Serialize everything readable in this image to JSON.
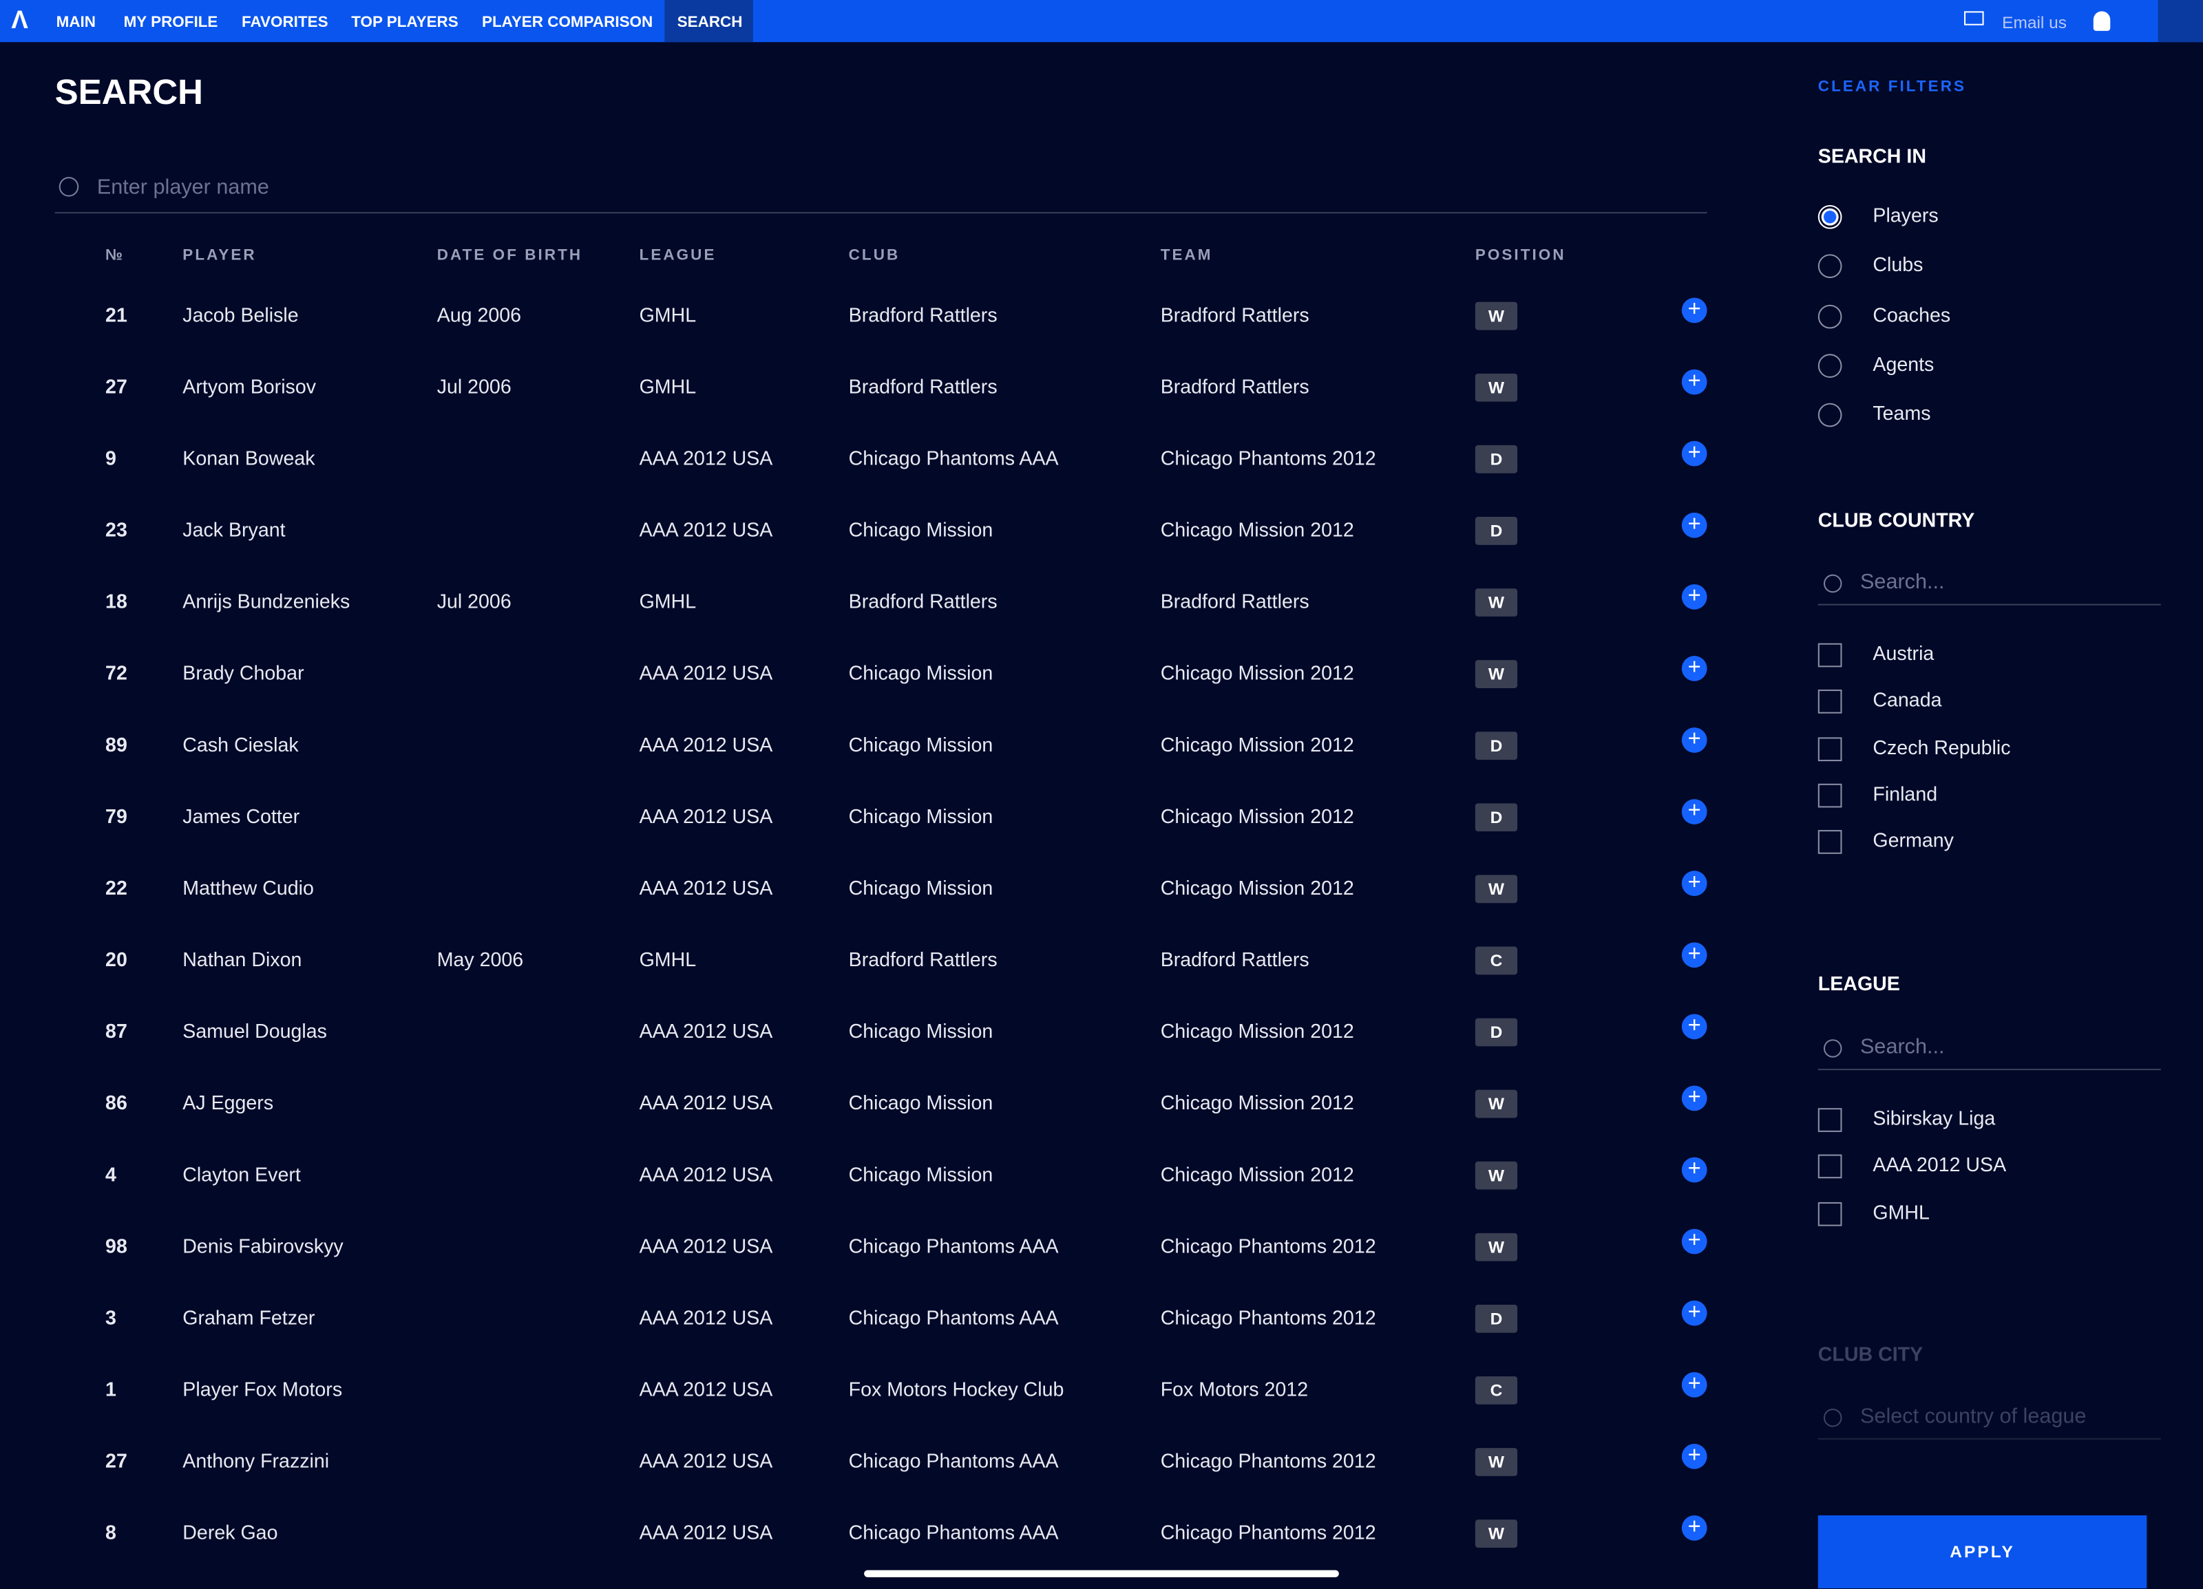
{
  "nav": {
    "items": [
      "MAIN",
      "MY PROFILE",
      "FAVORITES",
      "TOP PLAYERS",
      "PLAYER COMPARISON",
      "SEARCH"
    ],
    "email": "Email us"
  },
  "page": {
    "title": "SEARCH",
    "search_placeholder": "Enter player name"
  },
  "table": {
    "headers": [
      "№",
      "PLAYER",
      "DATE OF BIRTH",
      "LEAGUE",
      "CLUB",
      "TEAM",
      "POSITION"
    ],
    "rows": [
      [
        "21",
        "Jacob Belisle",
        "Aug 2006",
        "GMHL",
        "Bradford Rattlers",
        "Bradford Rattlers",
        "W"
      ],
      [
        "27",
        "Artyom Borisov",
        "Jul 2006",
        "GMHL",
        "Bradford Rattlers",
        "Bradford Rattlers",
        "W"
      ],
      [
        "9",
        "Konan Boweak",
        null,
        "AAA 2012 USA",
        "Chicago Phantoms AAA",
        "Chicago Phantoms 2012",
        "D"
      ],
      [
        "23",
        "Jack Bryant",
        null,
        "AAA 2012 USA",
        "Chicago Mission",
        "Chicago Mission 2012",
        "D"
      ],
      [
        "18",
        "Anrijs Bundzenieks",
        "Jul 2006",
        "GMHL",
        "Bradford Rattlers",
        "Bradford Rattlers",
        "W"
      ],
      [
        "72",
        "Brady Chobar",
        null,
        "AAA 2012 USA",
        "Chicago Mission",
        "Chicago Mission 2012",
        "W"
      ],
      [
        "89",
        "Cash Cieslak",
        null,
        "AAA 2012 USA",
        "Chicago Mission",
        "Chicago Mission 2012",
        "D"
      ],
      [
        "79",
        "James Cotter",
        null,
        "AAA 2012 USA",
        "Chicago Mission",
        "Chicago Mission 2012",
        "D"
      ],
      [
        "22",
        "Matthew Cudio",
        null,
        "AAA 2012 USA",
        "Chicago Mission",
        "Chicago Mission 2012",
        "W"
      ],
      [
        "20",
        "Nathan Dixon",
        "May 2006",
        "GMHL",
        "Bradford Rattlers",
        "Bradford Rattlers",
        "C"
      ],
      [
        "87",
        "Samuel Douglas",
        null,
        "AAA 2012 USA",
        "Chicago Mission",
        "Chicago Mission 2012",
        "D"
      ],
      [
        "86",
        "AJ Eggers",
        null,
        "AAA 2012 USA",
        "Chicago Mission",
        "Chicago Mission 2012",
        "W"
      ],
      [
        "4",
        "Clayton Evert",
        null,
        "AAA 2012 USA",
        "Chicago Mission",
        "Chicago Mission 2012",
        "W"
      ],
      [
        "98",
        "Denis Fabirovskyy",
        null,
        "AAA 2012 USA",
        "Chicago Phantoms AAA",
        "Chicago Phantoms 2012",
        "W"
      ],
      [
        "3",
        "Graham Fetzer",
        null,
        "AAA 2012 USA",
        "Chicago Phantoms AAA",
        "Chicago Phantoms 2012",
        "D"
      ],
      [
        "1",
        "Player Fox Motors",
        null,
        "AAA 2012 USA",
        "Fox Motors Hockey Club",
        "Fox Motors 2012",
        "C"
      ],
      [
        "27",
        "Anthony Frazzini",
        null,
        "AAA 2012 USA",
        "Chicago Phantoms AAA",
        "Chicago Phantoms 2012",
        "W"
      ],
      [
        "8",
        "Derek Gao",
        null,
        "AAA 2012 USA",
        "Chicago Phantoms AAA",
        "Chicago Phantoms 2012",
        "W"
      ]
    ]
  },
  "filters": {
    "clear": "CLEAR FILTERS",
    "search_in": {
      "title": "SEARCH IN",
      "options": [
        "Players",
        "Clubs",
        "Coaches",
        "Agents",
        "Teams"
      ]
    },
    "club_country": {
      "title": "CLUB COUNTRY",
      "placeholder": "Search...",
      "options": [
        "Austria",
        "Canada",
        "Czech Republic",
        "Finland",
        "Germany"
      ]
    },
    "league": {
      "title": "LEAGUE",
      "placeholder": "Search...",
      "options": [
        "Sibirskay Liga",
        "AAA 2012 USA",
        "GMHL"
      ]
    },
    "club_city": {
      "title": "CLUB CITY",
      "placeholder": "Select country of league"
    },
    "apply": "APPLY"
  }
}
